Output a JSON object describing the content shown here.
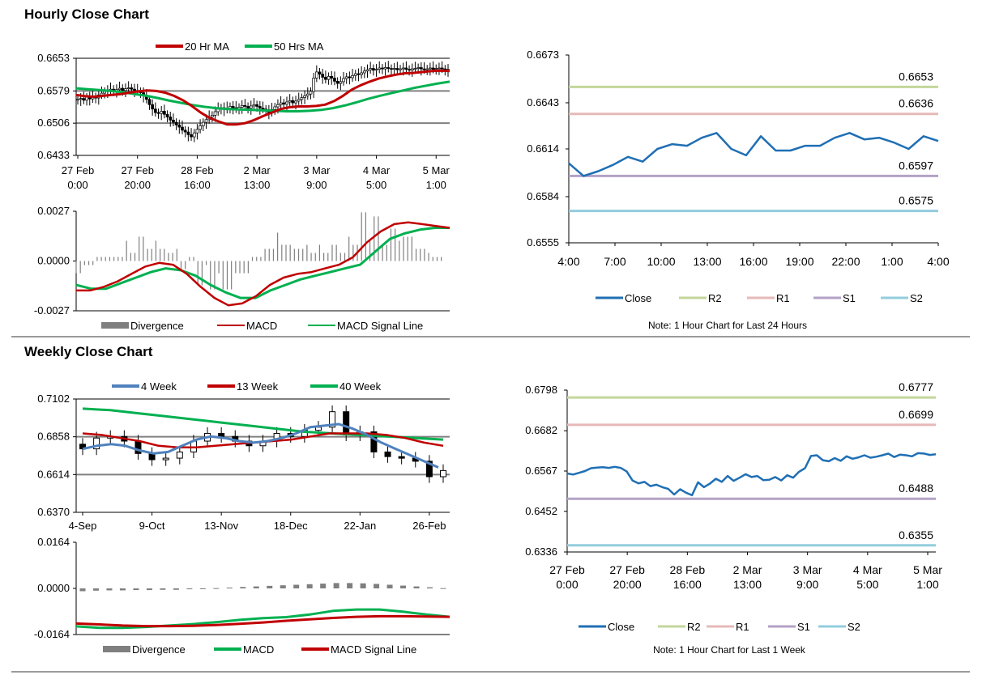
{
  "sections": {
    "hourly_title": "Hourly Close Chart",
    "weekly_title": "Weekly Close Chart"
  },
  "colors": {
    "ma_red": "#c00000",
    "ma_green": "#00b050",
    "week4_blue": "#4f81bd",
    "close_blue": "#1f6fb4",
    "r2": "#c3d69b",
    "r1": "#e6b9b8",
    "s1": "#b3a2c7",
    "s2": "#93cddd",
    "divergence": "#7f7f7f",
    "frame_gray": "#808080"
  },
  "chart_data": [
    {
      "id": "hourly_price",
      "type": "candlestick",
      "legend": [
        "20 Hr MA",
        "50 Hrs MA"
      ],
      "y_ticks": [
        "0.6653",
        "0.6579",
        "0.6506",
        "0.6433"
      ],
      "ylim": [
        0.6433,
        0.6653
      ],
      "x_ticks": [
        [
          "27 Feb",
          "0:00"
        ],
        [
          "27 Feb",
          "20:00"
        ],
        [
          "28 Feb",
          "16:00"
        ],
        [
          "2 Mar",
          "13:00"
        ],
        [
          "3 Mar",
          "9:00"
        ],
        [
          "4 Mar",
          "5:00"
        ],
        [
          "5 Mar",
          "1:00"
        ]
      ],
      "x_tick_index": [
        0,
        20,
        40,
        60,
        80,
        100,
        120
      ],
      "close": [
        0.656,
        0.6562,
        0.6558,
        0.6565,
        0.6561,
        0.6566,
        0.6563,
        0.657,
        0.6574,
        0.6578,
        0.658,
        0.6583,
        0.6579,
        0.6582,
        0.6585,
        0.658,
        0.6584,
        0.6586,
        0.6583,
        0.658,
        0.6578,
        0.6575,
        0.6568,
        0.656,
        0.6548,
        0.6538,
        0.653,
        0.6528,
        0.6533,
        0.6526,
        0.652,
        0.6513,
        0.6508,
        0.6502,
        0.6497,
        0.649,
        0.6486,
        0.648,
        0.6475,
        0.6484,
        0.6492,
        0.65,
        0.6508,
        0.6514,
        0.652,
        0.6524,
        0.6532,
        0.6538,
        0.6541,
        0.6537,
        0.654,
        0.6544,
        0.6541,
        0.6538,
        0.6542,
        0.6546,
        0.6544,
        0.654,
        0.6545,
        0.6548,
        0.6544,
        0.654,
        0.6538,
        0.6535,
        0.653,
        0.6537,
        0.6543,
        0.6548,
        0.6552,
        0.6549,
        0.6554,
        0.6557,
        0.6552,
        0.6556,
        0.656,
        0.6564,
        0.6568,
        0.6572,
        0.6578,
        0.6608,
        0.6622,
        0.6617,
        0.661,
        0.6605,
        0.6612,
        0.6608,
        0.6601,
        0.6596,
        0.66,
        0.6607,
        0.6611,
        0.6609,
        0.6614,
        0.6618,
        0.6616,
        0.662,
        0.6624,
        0.6627,
        0.663,
        0.6626,
        0.6628,
        0.6631,
        0.6629,
        0.6632,
        0.663,
        0.6628,
        0.663,
        0.6627,
        0.6629,
        0.6631,
        0.6628,
        0.6626,
        0.6629,
        0.663,
        0.6632,
        0.6629,
        0.6627,
        0.6629,
        0.6631,
        0.6628,
        0.663,
        0.6631,
        0.6629,
        0.6626,
        0.6628
      ],
      "ma20": [
        0.657,
        0.6567,
        0.6566,
        0.6568,
        0.657,
        0.6572,
        0.6575,
        0.6578,
        0.658,
        0.6579,
        0.6575,
        0.6568,
        0.6558,
        0.6545,
        0.653,
        0.6518,
        0.651,
        0.6503,
        0.6503,
        0.6506,
        0.6513,
        0.6522,
        0.653,
        0.6538,
        0.6542,
        0.6544,
        0.6544,
        0.6545,
        0.6548,
        0.6556,
        0.6568,
        0.6582,
        0.6592,
        0.66,
        0.6607,
        0.6612,
        0.6616,
        0.6619,
        0.662,
        0.6622,
        0.6624,
        0.6625,
        0.6624
      ],
      "ma50": [
        0.6585,
        0.6583,
        0.6581,
        0.6579,
        0.6576,
        0.6572,
        0.6568,
        0.6563,
        0.6557,
        0.6552,
        0.6547,
        0.6543,
        0.654,
        0.6538,
        0.6537,
        0.6536,
        0.6535,
        0.6534,
        0.6533,
        0.6533,
        0.6534,
        0.6536,
        0.654,
        0.6546,
        0.6553,
        0.6561,
        0.6568,
        0.6574,
        0.658,
        0.6586,
        0.6591,
        0.6596,
        0.66
      ],
      "macd_panel": {
        "legend": [
          "Divergence",
          "MACD",
          "MACD Signal Line"
        ],
        "y_ticks": [
          "0.0027",
          "0.0000",
          "-0.0027"
        ],
        "ylim": [
          -0.0027,
          0.0027
        ],
        "macd": [
          -0.0016,
          -0.0016,
          -0.0014,
          -0.0011,
          -0.0007,
          -0.0003,
          -0.0001,
          -0.0002,
          -0.0007,
          -0.0014,
          -0.002,
          -0.0024,
          -0.0023,
          -0.0019,
          -0.0013,
          -0.0009,
          -0.0007,
          -0.0006,
          -0.0004,
          -0.0002,
          0.0002,
          0.001,
          0.0016,
          0.002,
          0.0021,
          0.002,
          0.0019,
          0.0018
        ],
        "signal": [
          -0.0013,
          -0.0015,
          -0.0015,
          -0.0012,
          -0.0009,
          -0.0006,
          -0.0004,
          -0.0005,
          -0.0008,
          -0.0013,
          -0.0017,
          -0.002,
          -0.002,
          -0.0016,
          -0.0013,
          -0.001,
          -0.0008,
          -0.0006,
          -0.0004,
          -0.0002,
          0.0005,
          0.0012,
          0.0015,
          0.0017,
          0.0018,
          0.0018
        ]
      }
    },
    {
      "id": "hourly_levels",
      "type": "line",
      "y_ticks": [
        "0.6673",
        "0.6643",
        "0.6614",
        "0.6584",
        "0.6555"
      ],
      "ylim": [
        0.6555,
        0.6673
      ],
      "x_ticks": [
        "4:00",
        "7:00",
        "10:00",
        "13:00",
        "16:00",
        "19:00",
        "22:00",
        "1:00",
        "4:00"
      ],
      "close": [
        0.6605,
        0.6597,
        0.66,
        0.6604,
        0.6609,
        0.6606,
        0.6614,
        0.6617,
        0.6616,
        0.6621,
        0.6624,
        0.6614,
        0.661,
        0.6622,
        0.6613,
        0.6613,
        0.6616,
        0.6616,
        0.6621,
        0.6624,
        0.662,
        0.6621,
        0.6618,
        0.6614,
        0.6622,
        0.6619
      ],
      "levels": [
        {
          "name": "R2",
          "value": 0.6653,
          "label": "0.6653"
        },
        {
          "name": "R1",
          "value": 0.6636,
          "label": "0.6636"
        },
        {
          "name": "S1",
          "value": 0.6597,
          "label": "0.6597"
        },
        {
          "name": "S2",
          "value": 0.6575,
          "label": "0.6575"
        }
      ],
      "legend": [
        "Close",
        "R2",
        "R1",
        "S1",
        "S2"
      ],
      "note": "Note: 1 Hour Chart for Last 24 Hours"
    },
    {
      "id": "weekly_price",
      "type": "candlestick",
      "legend": [
        "4 Week",
        "13 Week",
        "40 Week"
      ],
      "y_ticks": [
        "0.7102",
        "0.6858",
        "0.6614",
        "0.6370"
      ],
      "ylim": [
        0.637,
        0.7102
      ],
      "x_ticks": [
        "4-Sep",
        "9-Oct",
        "13-Nov",
        "18-Dec",
        "22-Jan",
        "26-Feb"
      ],
      "x_tick_index": [
        0,
        5,
        10,
        15,
        20,
        25
      ],
      "close": [
        0.678,
        0.685,
        0.686,
        0.683,
        0.675,
        0.671,
        0.672,
        0.676,
        0.683,
        0.688,
        0.686,
        0.683,
        0.68,
        0.683,
        0.688,
        0.686,
        0.69,
        0.692,
        0.702,
        0.687,
        0.689,
        0.676,
        0.673,
        0.672,
        0.67,
        0.66,
        0.664
      ],
      "ma4": [
        0.678,
        0.68,
        0.681,
        0.68,
        0.677,
        0.675,
        0.676,
        0.68,
        0.684,
        0.686,
        0.685,
        0.683,
        0.682,
        0.683,
        0.685,
        0.688,
        0.692,
        0.693,
        0.694,
        0.691,
        0.687,
        0.682,
        0.678,
        0.674,
        0.67,
        0.666
      ],
      "ma13": [
        0.688,
        0.687,
        0.685,
        0.683,
        0.68,
        0.679,
        0.679,
        0.68,
        0.681,
        0.682,
        0.683,
        0.684,
        0.686,
        0.688,
        0.688,
        0.688,
        0.687,
        0.685,
        0.682,
        0.68
      ],
      "ma40": [
        0.704,
        0.703,
        0.701,
        0.699,
        0.697,
        0.695,
        0.693,
        0.691,
        0.689,
        0.688,
        0.687,
        0.686,
        0.685,
        0.684
      ],
      "macd_panel": {
        "legend": [
          "Divergence",
          "MACD",
          "MACD Signal Line"
        ],
        "y_ticks": [
          "0.0164",
          "0.0000",
          "-0.0164"
        ],
        "ylim": [
          -0.0164,
          0.0164
        ],
        "divergence": [
          -0.001,
          -0.0008,
          -0.0007,
          -0.0007,
          -0.0006,
          -0.0006,
          -0.0005,
          -0.0005,
          -0.0003,
          -0.0001,
          0.0001,
          0.0003,
          0.0005,
          0.0007,
          0.0009,
          0.0011,
          0.0013,
          0.0015,
          0.0017,
          0.0019,
          0.0019,
          0.0018,
          0.0016,
          0.0013,
          0.001,
          0.0007,
          0.0004,
          0.0001
        ],
        "macd": [
          -0.0135,
          -0.014,
          -0.014,
          -0.0137,
          -0.0132,
          -0.0127,
          -0.012,
          -0.0112,
          -0.0106,
          -0.0102,
          -0.0093,
          -0.008,
          -0.0075,
          -0.0075,
          -0.0083,
          -0.0093,
          -0.0101
        ],
        "signal": [
          -0.0125,
          -0.0128,
          -0.0132,
          -0.0134,
          -0.0134,
          -0.0133,
          -0.013,
          -0.0126,
          -0.0121,
          -0.0115,
          -0.011,
          -0.0105,
          -0.0101,
          -0.0099,
          -0.0099,
          -0.01,
          -0.0101
        ]
      }
    },
    {
      "id": "weekly_levels",
      "type": "line",
      "y_ticks": [
        "0.6798",
        "0.6682",
        "0.6567",
        "0.6452",
        "0.6336"
      ],
      "ylim": [
        0.6336,
        0.6798
      ],
      "x_ticks": [
        [
          "27 Feb",
          "0:00"
        ],
        [
          "27 Feb",
          "20:00"
        ],
        [
          "28 Feb",
          "16:00"
        ],
        [
          "2 Mar",
          "13:00"
        ],
        [
          "3 Mar",
          "9:00"
        ],
        [
          "4 Mar",
          "5:00"
        ],
        [
          "5 Mar",
          "1:00"
        ]
      ],
      "close": [
        0.656,
        0.6557,
        0.6562,
        0.6567,
        0.6575,
        0.6577,
        0.6578,
        0.6576,
        0.6579,
        0.6576,
        0.6566,
        0.654,
        0.6532,
        0.6536,
        0.6524,
        0.6528,
        0.6521,
        0.6516,
        0.65,
        0.6515,
        0.6505,
        0.6498,
        0.6535,
        0.6521,
        0.6531,
        0.6545,
        0.6536,
        0.6553,
        0.6539,
        0.6548,
        0.6558,
        0.655,
        0.6553,
        0.6541,
        0.6542,
        0.655,
        0.654,
        0.6555,
        0.6548,
        0.6565,
        0.6575,
        0.661,
        0.6612,
        0.6598,
        0.6595,
        0.6604,
        0.6596,
        0.6609,
        0.6602,
        0.6606,
        0.6612,
        0.6605,
        0.6608,
        0.6612,
        0.6617,
        0.6607,
        0.6614,
        0.6612,
        0.6609,
        0.6618,
        0.6617,
        0.6613,
        0.6615
      ],
      "levels": [
        {
          "name": "R2",
          "value": 0.6777,
          "label": "0.6777"
        },
        {
          "name": "R1",
          "value": 0.6699,
          "label": "0.6699"
        },
        {
          "name": "S1",
          "value": 0.6488,
          "label": "0.6488"
        },
        {
          "name": "S2",
          "value": 0.6355,
          "label": "0.6355"
        }
      ],
      "legend": [
        "Close",
        "R2",
        "R1",
        "S1",
        "S2"
      ],
      "note": "Note: 1 Hour Chart for Last 1 Week"
    }
  ]
}
